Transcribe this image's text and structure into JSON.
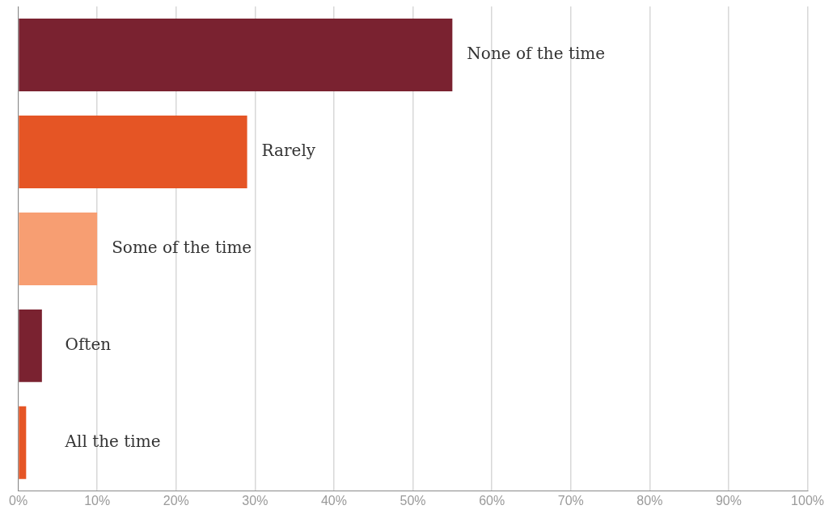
{
  "chart_data": {
    "type": "bar",
    "orientation": "horizontal",
    "categories": [
      "None of the time",
      "Rarely",
      "Some of the time",
      "Often",
      "All the time"
    ],
    "values": [
      55,
      29,
      10,
      3,
      1
    ],
    "colors": [
      "#7a2230",
      "#e55525",
      "#f79e72",
      "#7a2230",
      "#e55525"
    ],
    "xlim": [
      0,
      100
    ],
    "xticks": [
      {
        "value": 0,
        "label": "0%"
      },
      {
        "value": 10,
        "label": "10%"
      },
      {
        "value": 20,
        "label": "20%"
      },
      {
        "value": 30,
        "label": "30%"
      },
      {
        "value": 40,
        "label": "40%"
      },
      {
        "value": 50,
        "label": "50%"
      },
      {
        "value": 60,
        "label": "60%"
      },
      {
        "value": 70,
        "label": "70%"
      },
      {
        "value": 80,
        "label": "80%"
      },
      {
        "value": 90,
        "label": "90%"
      },
      {
        "value": 100,
        "label": "100%"
      }
    ],
    "grid": "x",
    "legend": false,
    "tick_labels": "x"
  }
}
